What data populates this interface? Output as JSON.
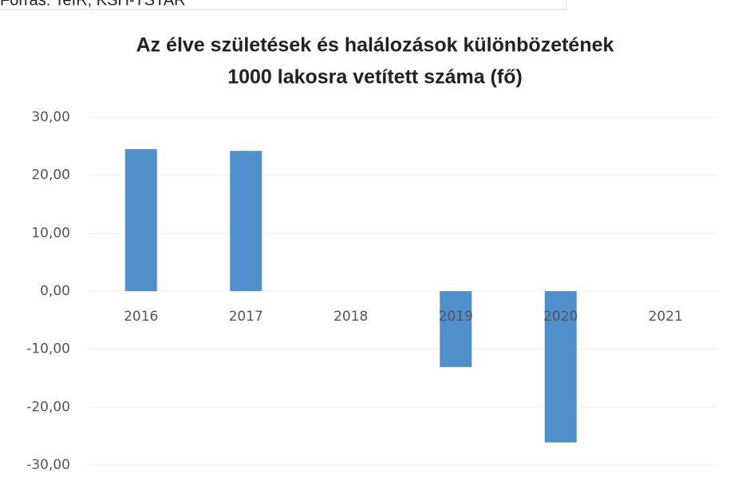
{
  "chart_data": {
    "type": "bar",
    "source": "Forrás: TeIR, KSH-TSTAR",
    "title": [
      "Az élve születések és halálozások különbözetének",
      "1000 lakosra vetített száma (fő)"
    ],
    "categories": [
      "2016",
      "2017",
      "2018",
      "2019",
      "2020",
      "2021"
    ],
    "values": [
      24.5,
      24.2,
      null,
      -13.1,
      -26.1,
      null
    ],
    "color": "#4f8fcc",
    "ylim": [
      -30,
      30
    ],
    "yticks": [
      {
        "value": -30,
        "label": "-30,00"
      },
      {
        "value": -20,
        "label": "-20,00"
      },
      {
        "value": -10,
        "label": "-10,00"
      },
      {
        "value": 0,
        "label": "0,00"
      },
      {
        "value": 10,
        "label": "10,00"
      },
      {
        "value": 20,
        "label": "20,00"
      },
      {
        "value": 30,
        "label": "30,00"
      }
    ],
    "grid": true
  }
}
